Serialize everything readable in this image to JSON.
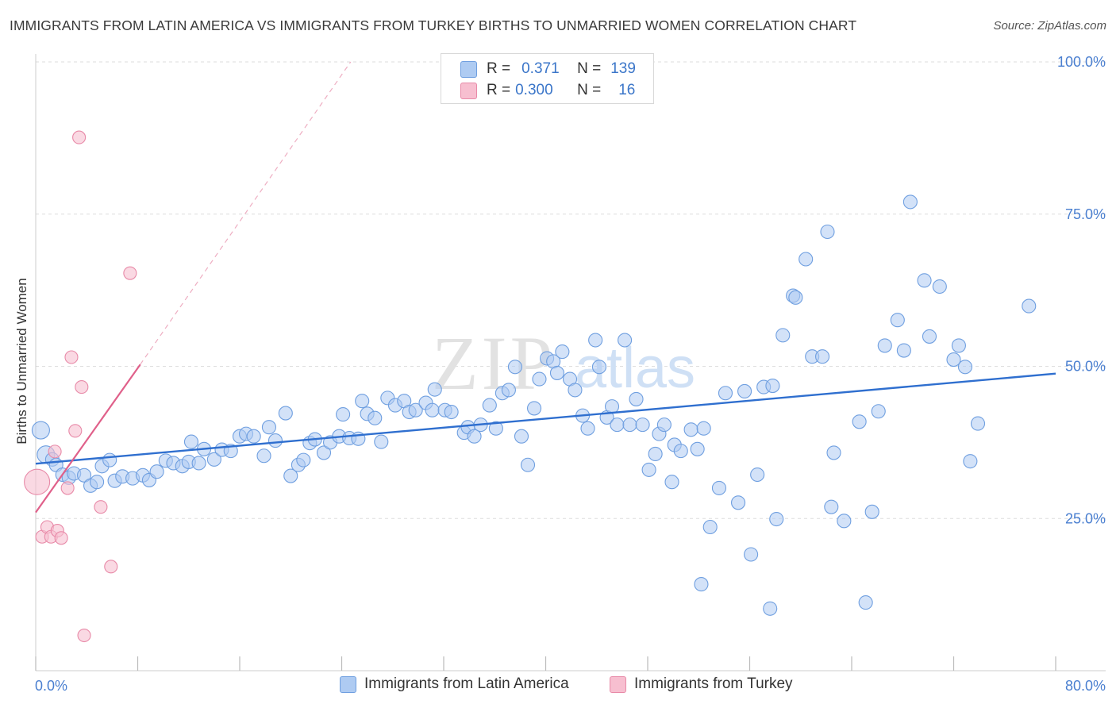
{
  "header": {
    "title": "IMMIGRANTS FROM LATIN AMERICA VS IMMIGRANTS FROM TURKEY BIRTHS TO UNMARRIED WOMEN CORRELATION CHART",
    "source": "Source: ZipAtlas.com"
  },
  "watermark": {
    "zip": "ZIP",
    "atlas": "atlas"
  },
  "stats_legend": {
    "row1": {
      "r_label": "R =",
      "r_value": "0.371",
      "n_label": "N =",
      "n_value": "139"
    },
    "row2": {
      "r_label": "R =",
      "r_value": "0.300",
      "n_label": "N =",
      "n_value": "16"
    }
  },
  "chart_data": {
    "type": "scatter",
    "title": "IMMIGRANTS FROM LATIN AMERICA VS IMMIGRANTS FROM TURKEY BIRTHS TO UNMARRIED WOMEN CORRELATION CHART",
    "xlabel": "",
    "ylabel": "Births to Unmarried Women",
    "xlim": [
      0,
      80
    ],
    "ylim": [
      0,
      100
    ],
    "x_tick_labels": [
      "0.0%",
      "80.0%"
    ],
    "y_tick_values": [
      25,
      50,
      75,
      100
    ],
    "y_tick_labels": [
      "25.0%",
      "50.0%",
      "75.0%",
      "100.0%"
    ],
    "grid": true,
    "colors": {
      "latin_fill": "#aecbf2",
      "latin_stroke": "#6f9fe0",
      "latin_line": "#2f6fcf",
      "turkey_fill": "#f7bfd0",
      "turkey_stroke": "#e88aa8",
      "turkey_line": "#e0608a",
      "axis_text": "#4a7fd0"
    },
    "series": [
      {
        "name": "Immigrants from Latin America",
        "trend": {
          "x": [
            0,
            80
          ],
          "y": [
            34.0,
            48.8
          ]
        },
        "points": [
          [
            0.4,
            39.5
          ],
          [
            0.8,
            35.5
          ],
          [
            1.3,
            34.7
          ],
          [
            1.6,
            33.8
          ],
          [
            2.1,
            32.2
          ],
          [
            2.6,
            31.7
          ],
          [
            3.0,
            32.4
          ],
          [
            3.8,
            32.1
          ],
          [
            4.3,
            30.4
          ],
          [
            4.8,
            31.0
          ],
          [
            5.2,
            33.6
          ],
          [
            5.8,
            34.6
          ],
          [
            6.2,
            31.2
          ],
          [
            6.8,
            31.9
          ],
          [
            7.6,
            31.6
          ],
          [
            8.4,
            32.1
          ],
          [
            8.9,
            31.3
          ],
          [
            9.5,
            32.7
          ],
          [
            10.2,
            34.5
          ],
          [
            10.8,
            34.1
          ],
          [
            11.5,
            33.6
          ],
          [
            12.0,
            34.3
          ],
          [
            12.2,
            37.6
          ],
          [
            12.8,
            34.1
          ],
          [
            13.2,
            36.4
          ],
          [
            14.0,
            34.7
          ],
          [
            14.6,
            36.3
          ],
          [
            15.3,
            36.1
          ],
          [
            16.0,
            38.5
          ],
          [
            16.5,
            38.9
          ],
          [
            17.1,
            38.5
          ],
          [
            17.9,
            35.3
          ],
          [
            18.3,
            40.0
          ],
          [
            18.8,
            37.8
          ],
          [
            19.6,
            42.3
          ],
          [
            20.0,
            32.0
          ],
          [
            20.6,
            33.8
          ],
          [
            21.0,
            34.6
          ],
          [
            21.5,
            37.4
          ],
          [
            21.9,
            38.0
          ],
          [
            22.6,
            35.8
          ],
          [
            23.1,
            37.5
          ],
          [
            23.8,
            38.5
          ],
          [
            24.1,
            42.1
          ],
          [
            24.6,
            38.2
          ],
          [
            25.3,
            38.1
          ],
          [
            25.6,
            44.3
          ],
          [
            26.0,
            42.2
          ],
          [
            26.6,
            41.5
          ],
          [
            27.1,
            37.6
          ],
          [
            27.6,
            44.8
          ],
          [
            28.2,
            43.6
          ],
          [
            28.9,
            44.3
          ],
          [
            29.3,
            42.5
          ],
          [
            29.8,
            42.8
          ],
          [
            30.6,
            44.0
          ],
          [
            31.1,
            42.8
          ],
          [
            31.3,
            46.2
          ],
          [
            32.1,
            42.8
          ],
          [
            32.6,
            42.5
          ],
          [
            33.6,
            39.1
          ],
          [
            33.9,
            40.0
          ],
          [
            34.4,
            38.5
          ],
          [
            34.9,
            40.4
          ],
          [
            35.6,
            43.6
          ],
          [
            36.1,
            39.8
          ],
          [
            36.6,
            45.6
          ],
          [
            37.1,
            46.1
          ],
          [
            37.6,
            49.9
          ],
          [
            38.1,
            38.5
          ],
          [
            38.6,
            33.8
          ],
          [
            39.1,
            43.1
          ],
          [
            39.5,
            47.9
          ],
          [
            40.1,
            51.3
          ],
          [
            40.6,
            50.8
          ],
          [
            40.9,
            48.9
          ],
          [
            41.3,
            52.4
          ],
          [
            41.9,
            47.9
          ],
          [
            42.3,
            46.1
          ],
          [
            42.9,
            41.9
          ],
          [
            43.3,
            39.8
          ],
          [
            43.9,
            54.3
          ],
          [
            44.2,
            49.9
          ],
          [
            44.8,
            41.6
          ],
          [
            45.2,
            43.4
          ],
          [
            45.6,
            40.4
          ],
          [
            46.2,
            54.3
          ],
          [
            46.6,
            40.4
          ],
          [
            47.1,
            44.6
          ],
          [
            47.6,
            40.4
          ],
          [
            48.1,
            33.0
          ],
          [
            48.6,
            35.6
          ],
          [
            48.9,
            38.9
          ],
          [
            49.3,
            40.4
          ],
          [
            49.9,
            31.0
          ],
          [
            50.1,
            37.1
          ],
          [
            50.6,
            36.1
          ],
          [
            51.4,
            39.6
          ],
          [
            51.9,
            36.4
          ],
          [
            52.4,
            39.8
          ],
          [
            52.9,
            23.6
          ],
          [
            53.6,
            30.0
          ],
          [
            54.1,
            45.6
          ],
          [
            55.1,
            27.6
          ],
          [
            55.6,
            45.9
          ],
          [
            56.1,
            19.1
          ],
          [
            56.6,
            32.2
          ],
          [
            57.1,
            46.6
          ],
          [
            57.6,
            10.2
          ],
          [
            58.1,
            24.9
          ],
          [
            58.6,
            55.1
          ],
          [
            59.4,
            61.6
          ],
          [
            60.4,
            67.6
          ],
          [
            60.9,
            51.6
          ],
          [
            61.7,
            51.6
          ],
          [
            62.1,
            72.1
          ],
          [
            62.4,
            26.9
          ],
          [
            62.6,
            35.8
          ],
          [
            63.4,
            24.6
          ],
          [
            64.6,
            40.9
          ],
          [
            65.6,
            26.1
          ],
          [
            66.1,
            42.6
          ],
          [
            66.6,
            53.4
          ],
          [
            67.6,
            57.6
          ],
          [
            68.1,
            52.6
          ],
          [
            68.6,
            77.0
          ],
          [
            69.7,
            64.1
          ],
          [
            70.1,
            54.9
          ],
          [
            70.9,
            63.1
          ],
          [
            72.0,
            51.1
          ],
          [
            72.4,
            53.4
          ],
          [
            72.9,
            49.9
          ],
          [
            73.3,
            34.4
          ],
          [
            73.9,
            40.6
          ],
          [
            77.9,
            59.9
          ],
          [
            52.2,
            14.2
          ],
          [
            65.1,
            11.2
          ],
          [
            59.6,
            61.3
          ],
          [
            57.8,
            46.8
          ]
        ]
      },
      {
        "name": "Immigrants from Turkey",
        "trend": {
          "x": [
            0,
            8.2
          ],
          "y": [
            26.0,
            50.3
          ]
        },
        "trend_dashed": {
          "x": [
            8.2,
            24.7
          ],
          "y": [
            50.3,
            100.0
          ]
        },
        "points": [
          [
            0.1,
            31.0
          ],
          [
            0.5,
            22.0
          ],
          [
            0.9,
            23.6
          ],
          [
            1.2,
            22.0
          ],
          [
            1.5,
            36.0
          ],
          [
            1.7,
            23.0
          ],
          [
            2.0,
            21.8
          ],
          [
            2.5,
            30.0
          ],
          [
            2.8,
            51.5
          ],
          [
            3.1,
            39.4
          ],
          [
            3.4,
            87.6
          ],
          [
            3.6,
            46.6
          ],
          [
            3.8,
            5.8
          ],
          [
            5.1,
            26.9
          ],
          [
            5.9,
            17.1
          ],
          [
            7.4,
            65.3
          ]
        ]
      }
    ]
  },
  "bottom_legend": {
    "latin": "Immigrants from Latin America",
    "turkey": "Immigrants from Turkey"
  }
}
